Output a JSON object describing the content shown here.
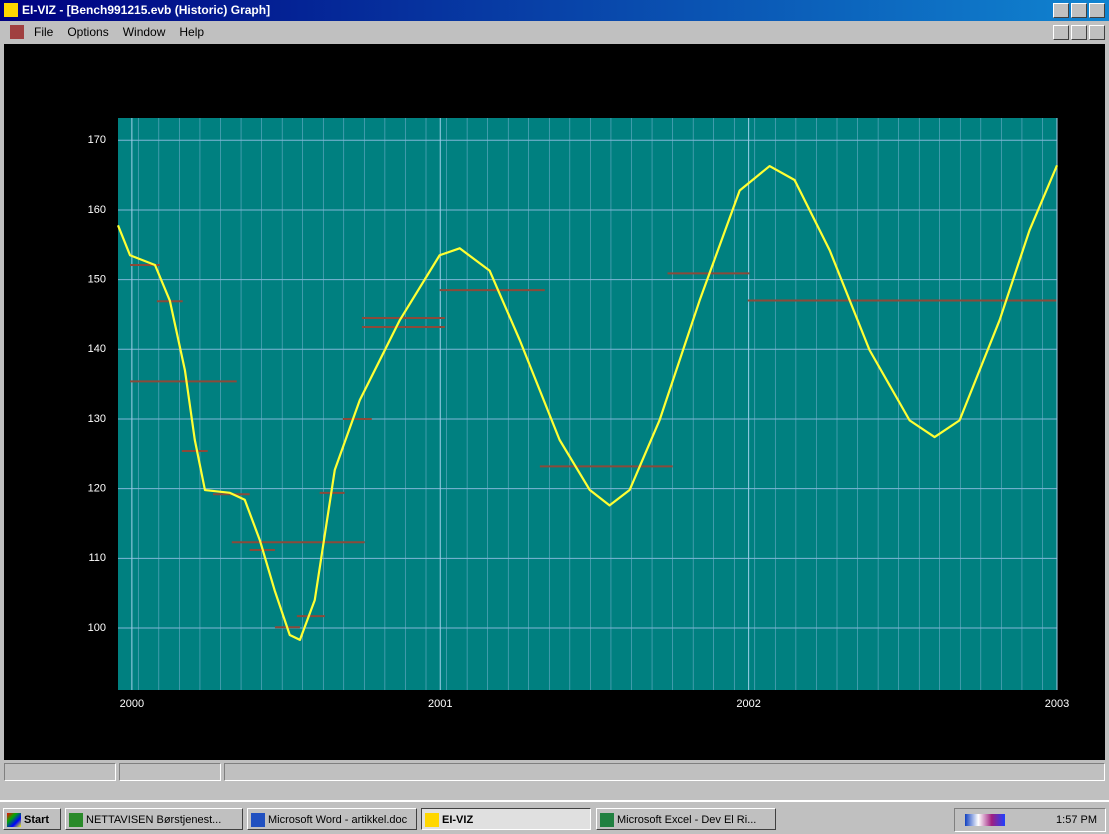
{
  "window": {
    "title": "EI-VIZ - [Bench991215.evb (Historic) Graph]",
    "menu": [
      "File",
      "Options",
      "Window",
      "Help"
    ]
  },
  "taskbar": {
    "start": "Start",
    "tasks": [
      "NETTAVISEN Børstjenest...",
      "Microsoft Word - artikkel.doc",
      "EI-VIZ",
      "Microsoft Excel - Dev El Ri..."
    ],
    "clock": "1:57 PM"
  },
  "chart_data": {
    "type": "line",
    "xlim": [
      1999.955,
      2003.0
    ],
    "xticks": [
      2000,
      2001,
      2002,
      2003
    ],
    "ylim": [
      91.1,
      173.2
    ],
    "yticks": [
      100,
      110,
      120,
      130,
      140,
      150,
      160,
      170
    ],
    "grid": true,
    "series": [
      {
        "color": "#ffff33",
        "x": [
          1999.955,
          1999.994,
          2000.075,
          2000.123,
          2000.172,
          2000.204,
          2000.237,
          2000.318,
          2000.366,
          2000.415,
          2000.463,
          2000.512,
          2000.545,
          2000.593,
          2000.658,
          2000.739,
          2000.869,
          2000.998,
          2001.063,
          2001.16,
          2001.258,
          2001.387,
          2001.485,
          2001.549,
          2001.614,
          2001.711,
          2001.841,
          2001.971,
          2002.068,
          2002.149,
          2002.263,
          2002.392,
          2002.522,
          2002.603,
          2002.684,
          2002.814,
          2002.911,
          2003.0
        ],
        "values": [
          157.8,
          153.5,
          152.1,
          147.0,
          137.0,
          127.0,
          119.8,
          119.4,
          118.4,
          112.6,
          105.4,
          99.0,
          98.3,
          104.0,
          122.7,
          132.7,
          144.2,
          153.5,
          154.5,
          151.3,
          141.3,
          127.0,
          119.8,
          117.6,
          119.8,
          129.8,
          147.0,
          162.8,
          166.3,
          164.3,
          154.2,
          139.9,
          129.8,
          127.4,
          129.8,
          144.2,
          157.1,
          166.4
        ]
      },
      {
        "type": "segments",
        "color": "#8b4a3a",
        "x0": [
          1999.994,
          2000.081,
          1999.994,
          2000.162,
          2000.263,
          2000.324,
          2000.382,
          2000.609,
          2000.684,
          2000.464,
          2000.535,
          2000.746,
          2000.746,
          2000.998,
          2001.323,
          2001.737,
          2001.997
        ],
        "x1": [
          2000.091,
          2000.165,
          2000.34,
          2000.246,
          2000.382,
          2000.755,
          2000.464,
          2000.69,
          2000.778,
          2000.545,
          2000.626,
          2001.015,
          2001.015,
          2001.339,
          2001.754,
          2002.003,
          2002.998
        ],
        "values": [
          152.1,
          146.9,
          135.4,
          125.4,
          119.2,
          112.3,
          111.2,
          119.4,
          130.0,
          100.1,
          101.7,
          144.5,
          143.2,
          148.5,
          123.2,
          150.9,
          147.0
        ]
      }
    ]
  }
}
